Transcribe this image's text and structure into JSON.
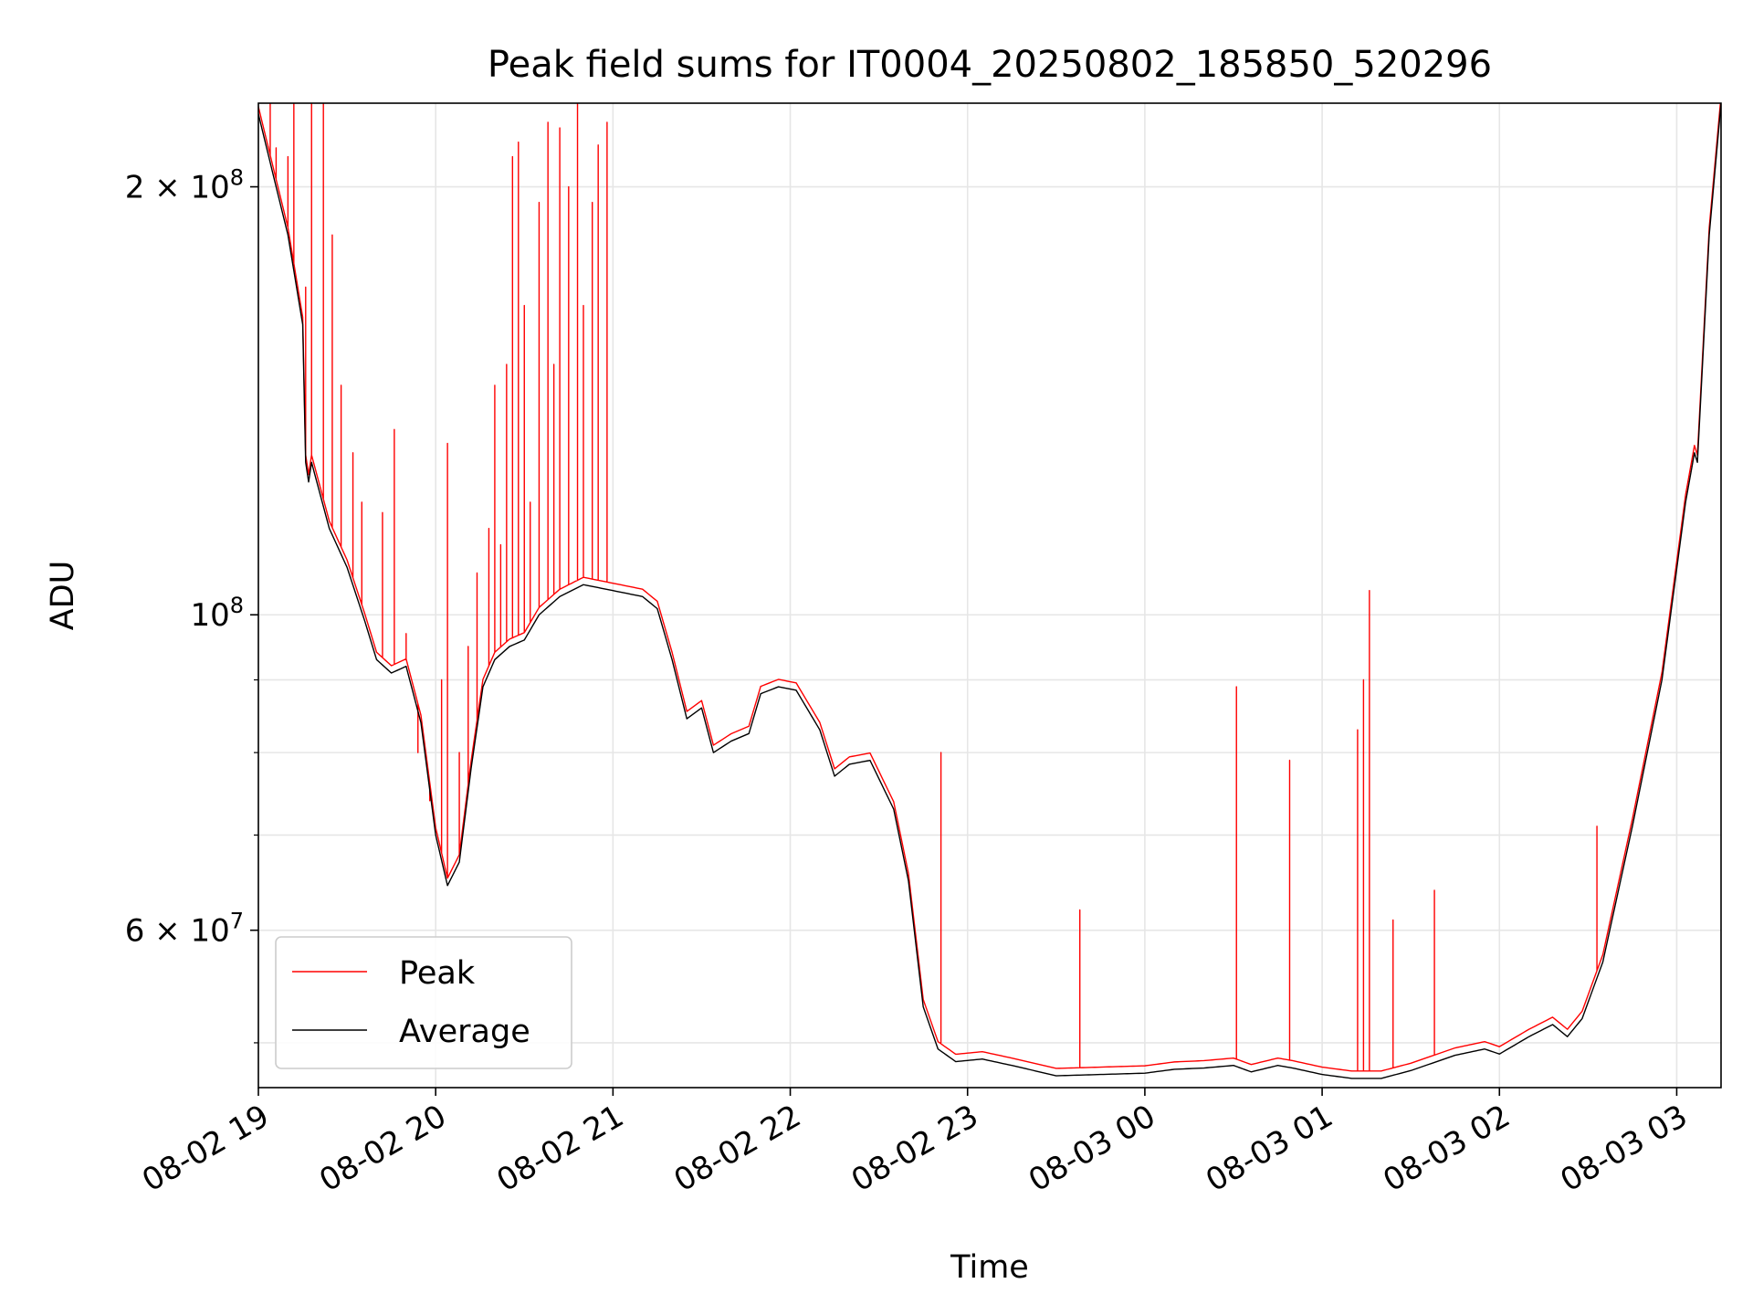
{
  "chart_data": {
    "type": "line",
    "title": "Peak field sums for IT0004_20250802_185850_520296",
    "xlabel": "Time",
    "ylabel": "ADU",
    "yscale": "log",
    "ylim": [
      46500000,
      229000000
    ],
    "xlim": [
      "2025-08-02 19:00",
      "2025-08-03 03:15"
    ],
    "grid": true,
    "legend": "lower-left",
    "x_ticks": [
      {
        "value": "2025-08-02 19:00",
        "label": "08-02 19"
      },
      {
        "value": "2025-08-02 20:00",
        "label": "08-02 20"
      },
      {
        "value": "2025-08-02 21:00",
        "label": "08-02 21"
      },
      {
        "value": "2025-08-02 22:00",
        "label": "08-02 22"
      },
      {
        "value": "2025-08-02 23:00",
        "label": "08-02 23"
      },
      {
        "value": "2025-08-03 00:00",
        "label": "08-03 00"
      },
      {
        "value": "2025-08-03 01:00",
        "label": "08-03 01"
      },
      {
        "value": "2025-08-03 02:00",
        "label": "08-03 02"
      },
      {
        "value": "2025-08-03 03:00",
        "label": "08-03 03"
      }
    ],
    "y_major_ticks": [
      {
        "value": 200000000,
        "base": "2 × 10",
        "exp": "8"
      },
      {
        "value": 100000000,
        "base": "10",
        "exp": "8"
      },
      {
        "value": 60000000,
        "base": "6 × 10",
        "exp": "7"
      }
    ],
    "y_minor_ticks": [
      50000000,
      70000000,
      80000000,
      90000000
    ],
    "series": [
      {
        "name": "Average",
        "color": "#000000",
        "points": [
          [
            "2025-08-02 19:00",
            225000000
          ],
          [
            "2025-08-02 19:06",
            200000000
          ],
          [
            "2025-08-02 19:10",
            185000000
          ],
          [
            "2025-08-02 19:15",
            160000000
          ],
          [
            "2025-08-02 19:16",
            128000000
          ],
          [
            "2025-08-02 19:17",
            124000000
          ],
          [
            "2025-08-02 19:18",
            128000000
          ],
          [
            "2025-08-02 19:24",
            115000000
          ],
          [
            "2025-08-02 19:30",
            108000000
          ],
          [
            "2025-08-02 19:36",
            99000000
          ],
          [
            "2025-08-02 19:40",
            93000000
          ],
          [
            "2025-08-02 19:45",
            91000000
          ],
          [
            "2025-08-02 19:50",
            92000000
          ],
          [
            "2025-08-02 19:55",
            84000000
          ],
          [
            "2025-08-02 20:00",
            70000000
          ],
          [
            "2025-08-02 20:04",
            64500000
          ],
          [
            "2025-08-02 20:08",
            67000000
          ],
          [
            "2025-08-02 20:12",
            78000000
          ],
          [
            "2025-08-02 20:16",
            89000000
          ],
          [
            "2025-08-02 20:20",
            93000000
          ],
          [
            "2025-08-02 20:25",
            95000000
          ],
          [
            "2025-08-02 20:30",
            96000000
          ],
          [
            "2025-08-02 20:35",
            100000000
          ],
          [
            "2025-08-02 20:42",
            103000000
          ],
          [
            "2025-08-02 20:50",
            105000000
          ],
          [
            "2025-08-02 21:00",
            104000000
          ],
          [
            "2025-08-02 21:10",
            103000000
          ],
          [
            "2025-08-02 21:15",
            101000000
          ],
          [
            "2025-08-02 21:20",
            93000000
          ],
          [
            "2025-08-02 21:25",
            84500000
          ],
          [
            "2025-08-02 21:30",
            86000000
          ],
          [
            "2025-08-02 21:34",
            80000000
          ],
          [
            "2025-08-02 21:40",
            81500000
          ],
          [
            "2025-08-02 21:46",
            82500000
          ],
          [
            "2025-08-02 21:50",
            88000000
          ],
          [
            "2025-08-02 21:56",
            89000000
          ],
          [
            "2025-08-02 22:02",
            88500000
          ],
          [
            "2025-08-02 22:10",
            83000000
          ],
          [
            "2025-08-02 22:15",
            77000000
          ],
          [
            "2025-08-02 22:20",
            78500000
          ],
          [
            "2025-08-02 22:27",
            79000000
          ],
          [
            "2025-08-02 22:35",
            73000000
          ],
          [
            "2025-08-02 22:40",
            65000000
          ],
          [
            "2025-08-02 22:45",
            53000000
          ],
          [
            "2025-08-02 22:50",
            49500000
          ],
          [
            "2025-08-02 22:56",
            48500000
          ],
          [
            "2025-08-02 23:05",
            48700000
          ],
          [
            "2025-08-02 23:15",
            48200000
          ],
          [
            "2025-08-02 23:30",
            47400000
          ],
          [
            "2025-08-02 23:45",
            47500000
          ],
          [
            "2025-08-03 00:00",
            47600000
          ],
          [
            "2025-08-03 00:10",
            47900000
          ],
          [
            "2025-08-03 00:20",
            48000000
          ],
          [
            "2025-08-03 00:30",
            48200000
          ],
          [
            "2025-08-03 00:36",
            47700000
          ],
          [
            "2025-08-03 00:45",
            48200000
          ],
          [
            "2025-08-03 00:50",
            48000000
          ],
          [
            "2025-08-03 01:00",
            47500000
          ],
          [
            "2025-08-03 01:10",
            47200000
          ],
          [
            "2025-08-03 01:20",
            47200000
          ],
          [
            "2025-08-03 01:30",
            47800000
          ],
          [
            "2025-08-03 01:45",
            49000000
          ],
          [
            "2025-08-03 01:55",
            49500000
          ],
          [
            "2025-08-03 02:00",
            49100000
          ],
          [
            "2025-08-03 02:10",
            50500000
          ],
          [
            "2025-08-03 02:18",
            51500000
          ],
          [
            "2025-08-03 02:23",
            50500000
          ],
          [
            "2025-08-03 02:28",
            52000000
          ],
          [
            "2025-08-03 02:35",
            57000000
          ],
          [
            "2025-08-03 02:45",
            71000000
          ],
          [
            "2025-08-03 02:55",
            90000000
          ],
          [
            "2025-08-03 03:03",
            120000000
          ],
          [
            "2025-08-03 03:06",
            130000000
          ],
          [
            "2025-08-03 03:07",
            128000000
          ],
          [
            "2025-08-03 03:11",
            185000000
          ],
          [
            "2025-08-03 03:15",
            229000000
          ]
        ]
      },
      {
        "name": "Peak",
        "color": "#ff0000",
        "spikes": [
          [
            "2025-08-02 19:04",
            229000000
          ],
          [
            "2025-08-02 19:06",
            213000000
          ],
          [
            "2025-08-02 19:10",
            210000000
          ],
          [
            "2025-08-02 19:12",
            229000000
          ],
          [
            "2025-08-02 19:16",
            170000000
          ],
          [
            "2025-08-02 19:18",
            229000000
          ],
          [
            "2025-08-02 19:22",
            229000000
          ],
          [
            "2025-08-02 19:25",
            185000000
          ],
          [
            "2025-08-02 19:28",
            145000000
          ],
          [
            "2025-08-02 19:32",
            130000000
          ],
          [
            "2025-08-02 19:35",
            120000000
          ],
          [
            "2025-08-02 19:42",
            118000000
          ],
          [
            "2025-08-02 19:46",
            135000000
          ],
          [
            "2025-08-02 19:50",
            97000000
          ],
          [
            "2025-08-02 19:54",
            80000000
          ],
          [
            "2025-08-02 19:58",
            74000000
          ],
          [
            "2025-08-02 20:02",
            90000000
          ],
          [
            "2025-08-02 20:04",
            132000000
          ],
          [
            "2025-08-02 20:08",
            80000000
          ],
          [
            "2025-08-02 20:11",
            95000000
          ],
          [
            "2025-08-02 20:14",
            107000000
          ],
          [
            "2025-08-02 20:18",
            115000000
          ],
          [
            "2025-08-02 20:20",
            145000000
          ],
          [
            "2025-08-02 20:22",
            112000000
          ],
          [
            "2025-08-02 20:24",
            150000000
          ],
          [
            "2025-08-02 20:26",
            210000000
          ],
          [
            "2025-08-02 20:28",
            215000000
          ],
          [
            "2025-08-02 20:30",
            165000000
          ],
          [
            "2025-08-02 20:32",
            120000000
          ],
          [
            "2025-08-02 20:35",
            195000000
          ],
          [
            "2025-08-02 20:38",
            222000000
          ],
          [
            "2025-08-02 20:40",
            150000000
          ],
          [
            "2025-08-02 20:42",
            220000000
          ],
          [
            "2025-08-02 20:45",
            200000000
          ],
          [
            "2025-08-02 20:48",
            229000000
          ],
          [
            "2025-08-02 20:50",
            165000000
          ],
          [
            "2025-08-02 20:53",
            195000000
          ],
          [
            "2025-08-02 20:55",
            214000000
          ],
          [
            "2025-08-02 20:58",
            222000000
          ],
          [
            "2025-08-02 22:51",
            80000000
          ],
          [
            "2025-08-02 23:38",
            62000000
          ],
          [
            "2025-08-03 00:31",
            89000000
          ],
          [
            "2025-08-03 00:49",
            79000000
          ],
          [
            "2025-08-03 01:12",
            83000000
          ],
          [
            "2025-08-03 01:14",
            90000000
          ],
          [
            "2025-08-03 01:16",
            104000000
          ],
          [
            "2025-08-03 01:24",
            61000000
          ],
          [
            "2025-08-03 01:38",
            64000000
          ],
          [
            "2025-08-03 02:33",
            71000000
          ]
        ]
      }
    ]
  }
}
